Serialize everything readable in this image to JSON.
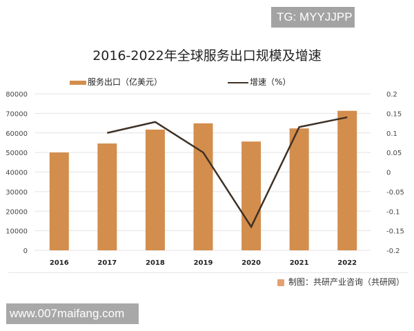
{
  "watermarks": {
    "top_badge": "TG: MYYJJPP",
    "bottom_badge": "www.007maifang.com"
  },
  "colors": {
    "bar": "#D38D4D",
    "line": "#3F3024",
    "grid": "#E3E3E3"
  },
  "source_text": "制图：共研产业咨询（共研网）",
  "chart_data": {
    "type": "bar",
    "title": "2016-2022年全球服务出口规模及增速",
    "xlabel": "",
    "ylabel": "",
    "categories": [
      "2016",
      "2017",
      "2018",
      "2019",
      "2020",
      "2021",
      "2022"
    ],
    "series": [
      {
        "name": "服务出口（亿美元）",
        "type": "bar",
        "axis": "left",
        "values": [
          50000,
          54600,
          61700,
          64900,
          55600,
          62300,
          71300
        ]
      },
      {
        "name": "增速（%）",
        "type": "line",
        "axis": "right",
        "values": [
          null,
          0.1,
          0.128,
          0.05,
          -0.14,
          0.115,
          0.14
        ]
      }
    ],
    "ylim": [
      0,
      80000
    ],
    "y_ticks": [
      "0",
      "10000",
      "20000",
      "30000",
      "40000",
      "50000",
      "60000",
      "70000",
      "80000"
    ],
    "y2lim": [
      -0.2,
      0.2
    ],
    "y2_ticks": [
      "-0.2",
      "-0.15",
      "-0.1",
      "-0.05",
      "0",
      "0.05",
      "0.1",
      "0.15",
      "0.2"
    ],
    "grid": true,
    "legend_position": "top"
  }
}
